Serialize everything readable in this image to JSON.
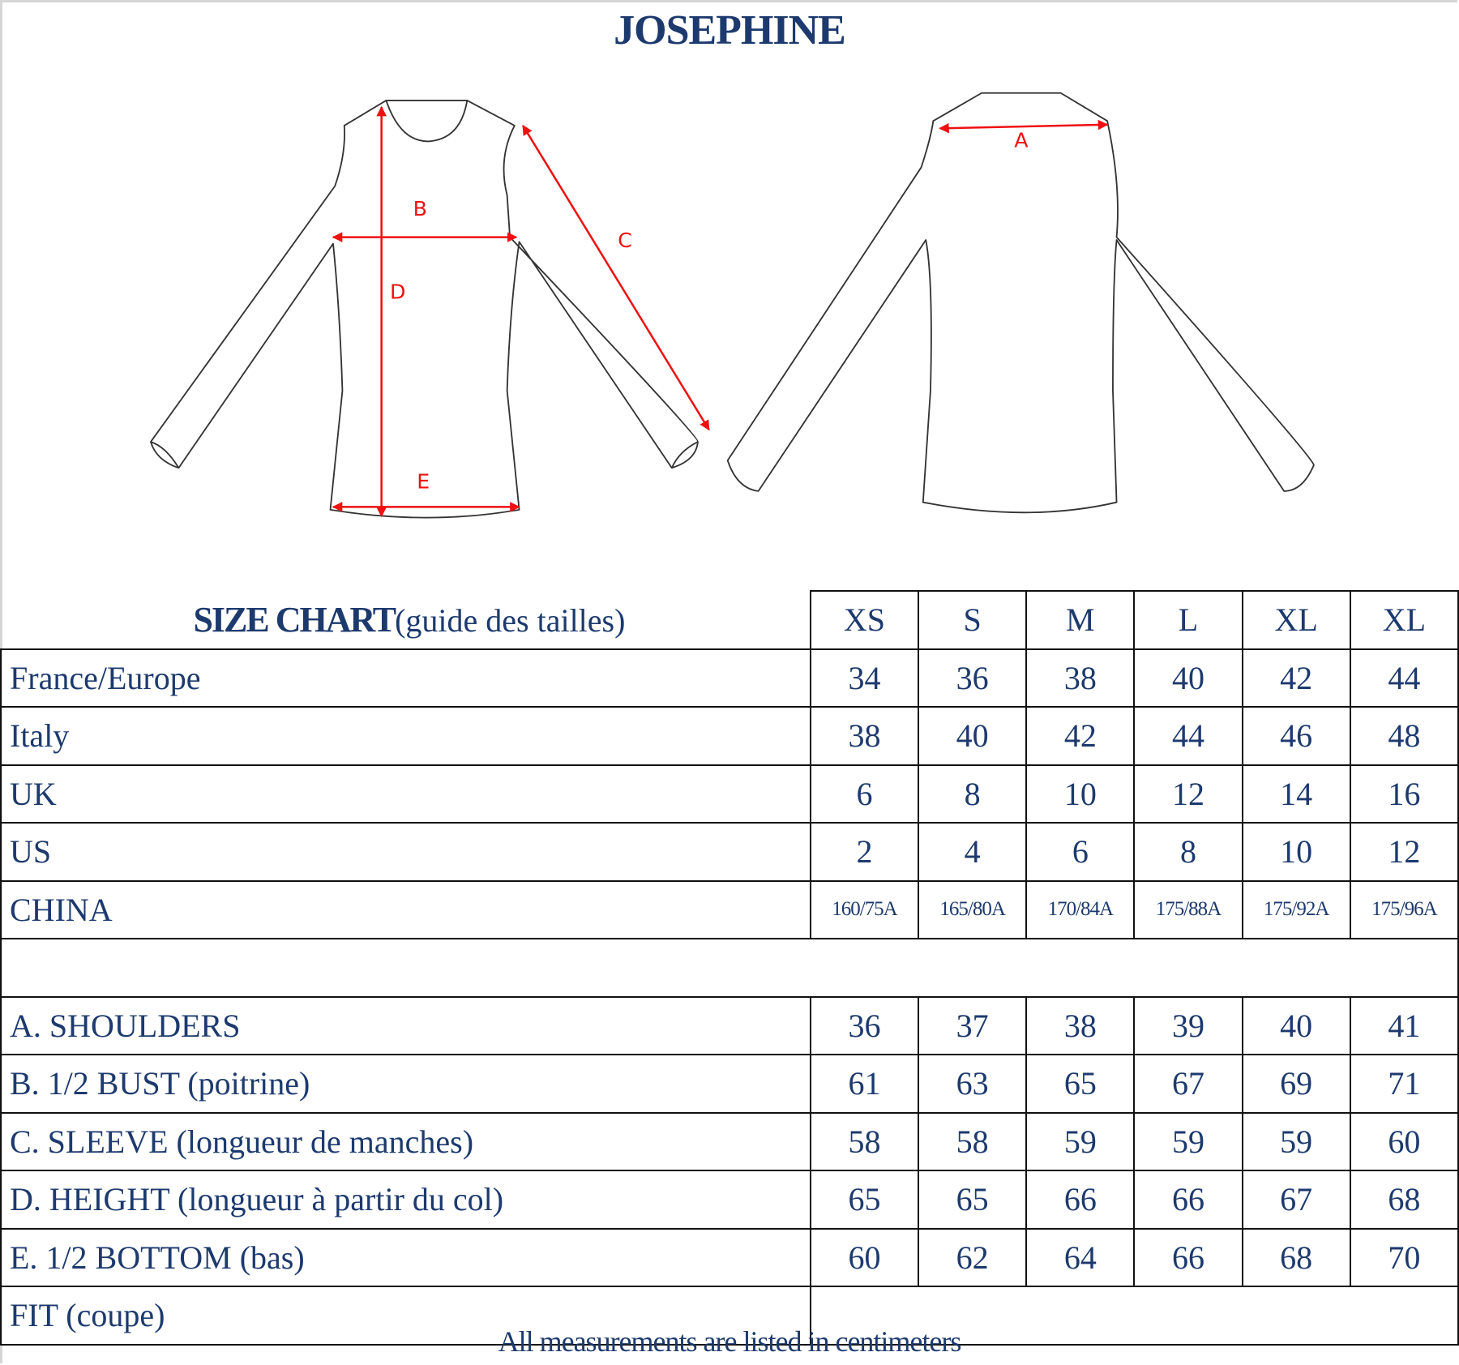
{
  "title": "JOSEPHINE",
  "diagram": {
    "labels": {
      "a": "A",
      "b": "B",
      "c": "C",
      "d": "D",
      "e": "E"
    },
    "line_color": "#333333",
    "arrow_color": "#ee1111"
  },
  "table": {
    "heading_bold": "SIZE CHART",
    "heading_sub": "(guide des tailles)",
    "sizes": [
      "XS",
      "S",
      "M",
      "L",
      "XL",
      "XL"
    ],
    "conversion_rows": [
      {
        "label": "France/Europe",
        "values": [
          "34",
          "36",
          "38",
          "40",
          "42",
          "44"
        ]
      },
      {
        "label": "Italy",
        "values": [
          "38",
          "40",
          "42",
          "44",
          "46",
          "48"
        ]
      },
      {
        "label": "UK",
        "values": [
          "6",
          "8",
          "10",
          "12",
          "14",
          "16"
        ]
      },
      {
        "label": "US",
        "values": [
          "2",
          "4",
          "6",
          "8",
          "10",
          "12"
        ]
      },
      {
        "label": "CHINA",
        "values": [
          "160/75A",
          "165/80A",
          "170/84A",
          "175/88A",
          "175/92A",
          "175/96A"
        ]
      }
    ],
    "measurement_rows": [
      {
        "label": "A. SHOULDERS",
        "values": [
          "36",
          "37",
          "38",
          "39",
          "40",
          "41"
        ]
      },
      {
        "label": "B. 1/2 BUST (poitrine)",
        "values": [
          "61",
          "63",
          "65",
          "67",
          "69",
          "71"
        ]
      },
      {
        "label": "C. SLEEVE (longueur de manches)",
        "values": [
          "58",
          "58",
          "59",
          "59",
          "59",
          "60"
        ]
      },
      {
        "label": "D. HEIGHT (longueur à partir du col)",
        "values": [
          "65",
          "65",
          "66",
          "66",
          "67",
          "68"
        ]
      },
      {
        "label": "E. 1/2 BOTTOM (bas)",
        "values": [
          "60",
          "62",
          "64",
          "66",
          "68",
          "70"
        ]
      }
    ],
    "fit_label": "FIT (coupe)"
  },
  "footer": "All measurements are listed in centimeters",
  "colors": {
    "text": "#1d3a6e",
    "border": "#111111"
  }
}
